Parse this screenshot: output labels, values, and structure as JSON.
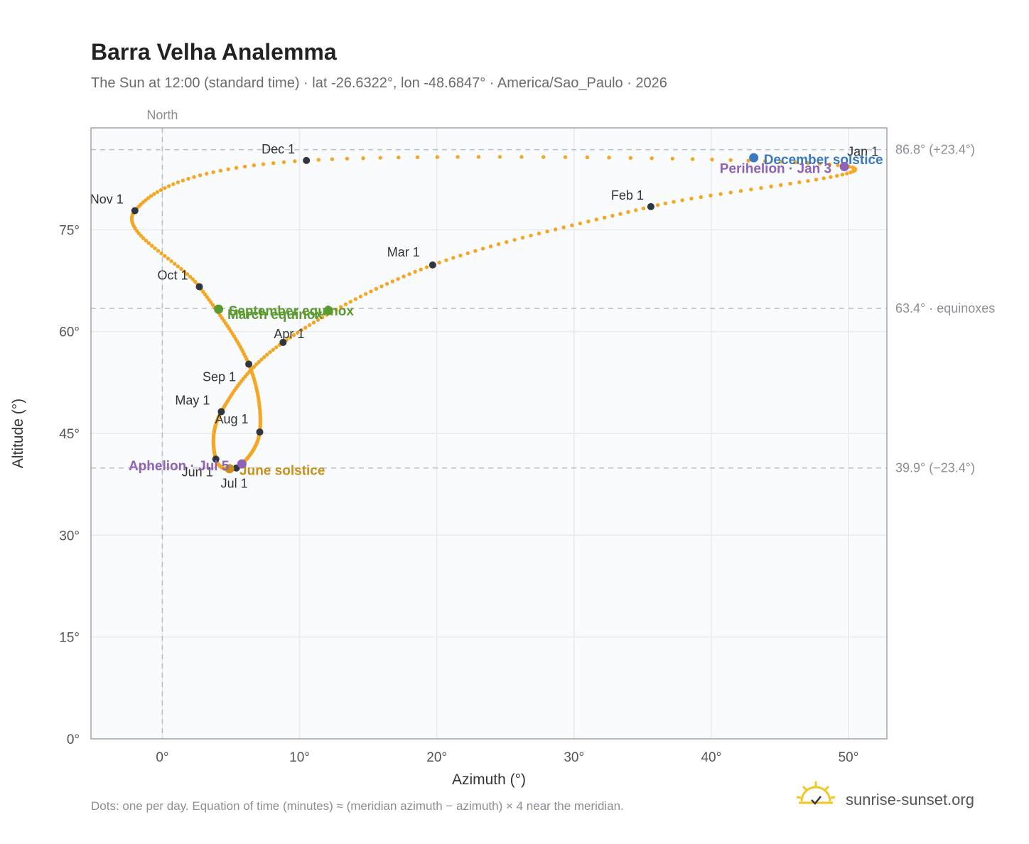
{
  "header": {
    "title": "Barra Velha Analemma",
    "subtitle": "The Sun at 12:00 (standard time) · lat -26.6322°, lon -48.6847° · America/Sao_Paulo · 2026"
  },
  "footer": {
    "note": "Dots: one per day. Equation of time (minutes) ≈ (meridian azimuth − azimuth) × 4 near the meridian.",
    "brand": "sunrise-sunset.org"
  },
  "colors": {
    "path": "#f5a623",
    "month_dot": "#2f3640",
    "equinox": "#5b9a2f",
    "june_solstice": "#c9911a",
    "december_solstice": "#3a78c2",
    "apsis": "#8e63b5",
    "grid": "#e6eaef",
    "plot_bg": "#f9fbfd",
    "ref_line": "#b7c0c9"
  },
  "chart_data": {
    "type": "scatter",
    "title": "Barra Velha Analemma",
    "xlabel": "Azimuth (°)",
    "ylabel": "Altitude (°)",
    "xlim": [
      -5.2,
      52.8
    ],
    "ylim": [
      0,
      90
    ],
    "x_ticks": [
      {
        "value": 0,
        "label": "0°"
      },
      {
        "value": 10,
        "label": "10°"
      },
      {
        "value": 20,
        "label": "20°"
      },
      {
        "value": 30,
        "label": "30°"
      },
      {
        "value": 40,
        "label": "40°"
      },
      {
        "value": 50,
        "label": "50°"
      }
    ],
    "y_ticks": [
      {
        "value": 0,
        "label": "0°"
      },
      {
        "value": 15,
        "label": "15°"
      },
      {
        "value": 30,
        "label": "30°"
      },
      {
        "value": 45,
        "label": "45°"
      },
      {
        "value": 60,
        "label": "60°"
      },
      {
        "value": 75,
        "label": "75°"
      }
    ],
    "grid": true,
    "vertical_reference": {
      "azimuth": 0,
      "label": "North"
    },
    "reference_lines": [
      {
        "altitude": 86.8,
        "label": "86.8° (+23.4°)"
      },
      {
        "altitude": 63.4,
        "label": "63.4° · equinoxes"
      },
      {
        "altitude": 39.9,
        "label": "39.9° (−23.4°)"
      }
    ],
    "month_points": [
      {
        "label": "Jan 1",
        "azimuth": 49.7,
        "altitude": 84.4
      },
      {
        "label": "Feb 1",
        "azimuth": 35.6,
        "altitude": 78.4
      },
      {
        "label": "Mar 1",
        "azimuth": 19.7,
        "altitude": 69.8
      },
      {
        "label": "Apr 1",
        "azimuth": 8.8,
        "altitude": 58.4
      },
      {
        "label": "May 1",
        "azimuth": 4.3,
        "altitude": 48.2
      },
      {
        "label": "Jun 1",
        "azimuth": 3.9,
        "altitude": 41.2
      },
      {
        "label": "Jul 1",
        "azimuth": 5.4,
        "altitude": 39.9
      },
      {
        "label": "Aug 1",
        "azimuth": 7.1,
        "altitude": 45.2
      },
      {
        "label": "Sep 1",
        "azimuth": 6.3,
        "altitude": 55.2
      },
      {
        "label": "Oct 1",
        "azimuth": 2.7,
        "altitude": 66.6
      },
      {
        "label": "Nov 1",
        "azimuth": -2.0,
        "altitude": 77.8
      },
      {
        "label": "Dec 1",
        "azimuth": 10.5,
        "altitude": 85.2
      }
    ],
    "events": [
      {
        "label": "December solstice",
        "azimuth": 43.1,
        "altitude": 85.6,
        "color": "#3a78c2"
      },
      {
        "label": "Perihelion · Jan 3",
        "azimuth": 49.7,
        "altitude": 84.3,
        "color": "#8e63b5"
      },
      {
        "label": "March equinox",
        "azimuth": 12.1,
        "altitude": 63.1,
        "color": "#5b9a2f"
      },
      {
        "label": "September equinox",
        "azimuth": 4.1,
        "altitude": 63.3,
        "color": "#5b9a2f"
      },
      {
        "label": "June solstice",
        "azimuth": 4.9,
        "altitude": 39.8,
        "color": "#c9911a"
      },
      {
        "label": "Aphelion · Jul 5",
        "azimuth": 5.8,
        "altitude": 40.5,
        "color": "#8e63b5"
      }
    ]
  }
}
